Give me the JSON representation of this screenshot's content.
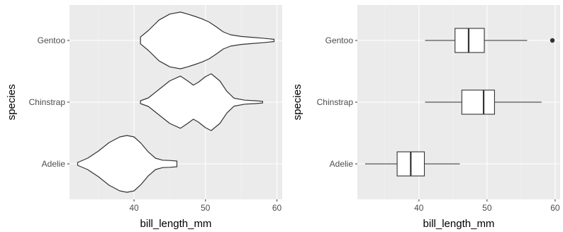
{
  "chart_data": [
    {
      "type": "violin",
      "categories": [
        "Adelie",
        "Chinstrap",
        "Gentoo"
      ],
      "xlabel": "bill_length_mm",
      "ylabel": "species",
      "xlim": [
        30.96,
        60.74
      ],
      "xticks": [
        40,
        50,
        60
      ],
      "xticks_minor": [
        35,
        45,
        55
      ],
      "grid": true,
      "series": [
        {
          "name": "Adelie",
          "min": 32.1,
          "max": 46.0,
          "profile": [
            [
              32.1,
              0.05
            ],
            [
              33.5,
              0.2
            ],
            [
              35.0,
              0.45
            ],
            [
              36.5,
              0.75
            ],
            [
              38.0,
              0.95
            ],
            [
              39.0,
              1.0
            ],
            [
              40.0,
              0.95
            ],
            [
              41.0,
              0.72
            ],
            [
              42.0,
              0.42
            ],
            [
              43.0,
              0.2
            ],
            [
              44.0,
              0.13
            ],
            [
              45.0,
              0.12
            ],
            [
              46.0,
              0.1
            ]
          ]
        },
        {
          "name": "Chinstrap",
          "min": 40.9,
          "max": 58.0,
          "profile": [
            [
              40.9,
              0.05
            ],
            [
              42.0,
              0.15
            ],
            [
              43.5,
              0.45
            ],
            [
              45.0,
              0.75
            ],
            [
              46.5,
              0.92
            ],
            [
              47.5,
              0.75
            ],
            [
              48.3,
              0.6
            ],
            [
              49.0,
              0.7
            ],
            [
              50.0,
              0.9
            ],
            [
              50.8,
              1.0
            ],
            [
              52.0,
              0.75
            ],
            [
              53.0,
              0.38
            ],
            [
              54.0,
              0.14
            ],
            [
              55.5,
              0.07
            ],
            [
              57.0,
              0.05
            ],
            [
              58.0,
              0.03
            ]
          ]
        },
        {
          "name": "Gentoo",
          "min": 40.9,
          "max": 59.6,
          "profile": [
            [
              40.9,
              0.12
            ],
            [
              42.0,
              0.35
            ],
            [
              43.5,
              0.72
            ],
            [
              45.0,
              0.93
            ],
            [
              46.5,
              1.0
            ],
            [
              47.5,
              0.93
            ],
            [
              48.5,
              0.85
            ],
            [
              49.5,
              0.76
            ],
            [
              50.5,
              0.65
            ],
            [
              51.5,
              0.48
            ],
            [
              52.5,
              0.3
            ],
            [
              53.5,
              0.2
            ],
            [
              55.0,
              0.14
            ],
            [
              56.5,
              0.11
            ],
            [
              58.0,
              0.08
            ],
            [
              59.6,
              0.04
            ]
          ]
        }
      ]
    },
    {
      "type": "box",
      "categories": [
        "Adelie",
        "Chinstrap",
        "Gentoo"
      ],
      "xlabel": "bill_length_mm",
      "ylabel": "species",
      "xlim": [
        30.96,
        60.74
      ],
      "xticks": [
        40,
        50,
        60
      ],
      "xticks_minor": [
        35,
        45,
        55
      ],
      "grid": true,
      "series": [
        {
          "name": "Adelie",
          "whisker_low": 32.1,
          "q1": 36.8,
          "median": 38.8,
          "q3": 40.8,
          "whisker_high": 46.0,
          "outliers": []
        },
        {
          "name": "Chinstrap",
          "whisker_low": 40.9,
          "q1": 46.3,
          "median": 49.5,
          "q3": 51.1,
          "whisker_high": 58.0,
          "outliers": []
        },
        {
          "name": "Gentoo",
          "whisker_low": 40.9,
          "q1": 45.3,
          "median": 47.3,
          "q3": 49.6,
          "whisker_high": 55.9,
          "outliers": [
            59.6
          ]
        }
      ]
    }
  ],
  "colors": {
    "panel_background": "#ebebeb",
    "grid_major": "#ffffff",
    "grid_minor": "#f5f5f5",
    "shape_fill": "#ffffff",
    "shape_stroke": "#333333",
    "tick_mark": "#333333",
    "tick_text": "#4d4d4d",
    "title_text": "#000000"
  }
}
